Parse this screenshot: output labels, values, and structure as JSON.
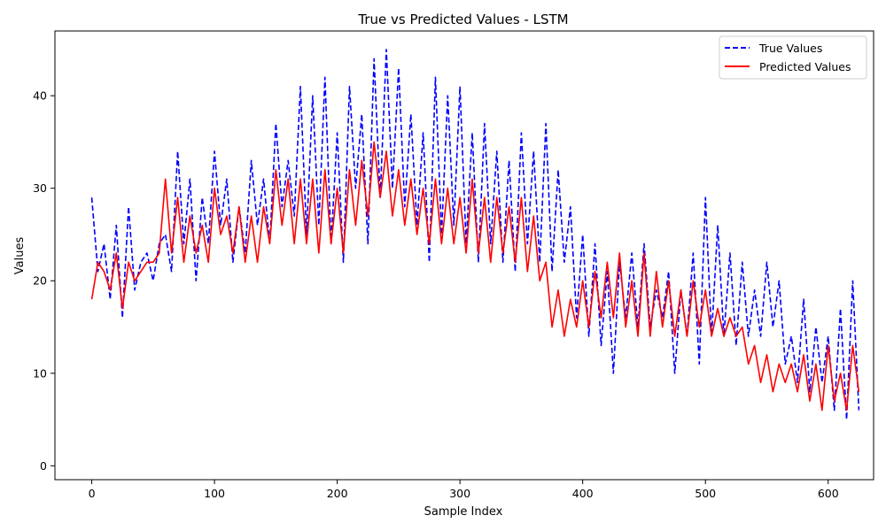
{
  "chart_data": {
    "type": "line",
    "title": "True vs Predicted Values - LSTM",
    "xlabel": "Sample Index",
    "ylabel": "Values",
    "xlim": [
      -30,
      637
    ],
    "ylim": [
      -1.5,
      47
    ],
    "x_ticks": [
      0,
      100,
      200,
      300,
      400,
      500,
      600
    ],
    "y_ticks": [
      0,
      10,
      20,
      30,
      40
    ],
    "grid": false,
    "legend_position": "top-right",
    "colors": {
      "true_values": "#0000ff",
      "predicted_values": "#ff0000"
    },
    "x_start": 0,
    "x_step": 5,
    "series": [
      {
        "name": "True Values",
        "style": "dashed",
        "color": "#0000ff",
        "values": [
          29,
          21,
          24,
          18,
          26,
          16,
          28,
          19,
          22,
          23,
          20,
          24,
          25,
          21,
          34,
          24,
          31,
          20,
          29,
          24,
          34,
          26,
          31,
          22,
          28,
          23,
          33,
          26,
          31,
          24,
          37,
          28,
          33,
          27,
          41,
          25,
          40,
          26,
          42,
          24,
          36,
          22,
          41,
          30,
          38,
          24,
          44,
          29,
          45,
          30,
          43,
          28,
          38,
          26,
          36,
          22,
          42,
          25,
          40,
          26,
          41,
          24,
          36,
          22,
          37,
          24,
          34,
          22,
          33,
          21,
          36,
          24,
          34,
          22,
          37,
          21,
          32,
          22,
          28,
          16,
          25,
          14,
          24,
          13,
          21,
          10,
          22,
          16,
          23,
          15,
          24,
          15,
          19,
          16,
          21,
          10,
          19,
          14,
          23,
          11,
          29,
          14,
          26,
          14,
          23,
          13,
          22,
          14,
          19,
          14,
          22,
          15,
          20,
          11,
          14,
          9,
          18,
          8,
          15,
          9,
          14,
          6,
          17,
          5,
          20,
          6
        ]
      },
      {
        "name": "Predicted Values",
        "style": "solid",
        "color": "#ff0000",
        "values": [
          18,
          22,
          21,
          19,
          23,
          17,
          22,
          20,
          21,
          22,
          22,
          23,
          31,
          23,
          29,
          22,
          27,
          23,
          26,
          22,
          30,
          25,
          27,
          23,
          28,
          22,
          27,
          22,
          28,
          24,
          32,
          26,
          31,
          24,
          31,
          24,
          31,
          23,
          32,
          24,
          30,
          23,
          32,
          26,
          33,
          27,
          35,
          29,
          34,
          27,
          32,
          26,
          31,
          25,
          30,
          24,
          31,
          24,
          30,
          24,
          29,
          23,
          31,
          23,
          29,
          22,
          29,
          23,
          28,
          22,
          29,
          21,
          27,
          20,
          22,
          15,
          19,
          14,
          18,
          15,
          20,
          15,
          21,
          16,
          22,
          16,
          23,
          15,
          20,
          14,
          23,
          14,
          21,
          15,
          20,
          14,
          19,
          14,
          20,
          15,
          19,
          14,
          17,
          14,
          16,
          14,
          15,
          11,
          13,
          9,
          12,
          8,
          11,
          9,
          11,
          8,
          12,
          7,
          11,
          6,
          13,
          7,
          10,
          6,
          13,
          8
        ]
      }
    ]
  }
}
